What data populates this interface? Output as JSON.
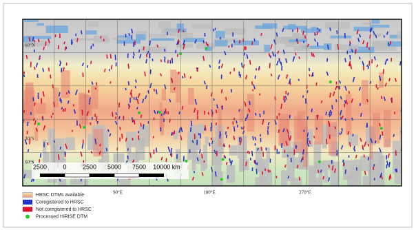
{
  "map": {
    "latitude_labels": [
      "60°N",
      "30°S",
      "60°S"
    ],
    "longitude_labels": [
      "90°E",
      "180°E",
      "270°E"
    ],
    "scale_bar": {
      "labels": [
        "2500",
        "0",
        "2500",
        "5000",
        "7500",
        "10000 km"
      ]
    },
    "legend": [
      {
        "label": "HRSC DTMs available",
        "color": "#f2b57a"
      },
      {
        "label": "Coregistered to HRSC",
        "color": "#2233cc"
      },
      {
        "label": "Not coregistered to HRSC",
        "color": "#e01030"
      },
      {
        "label": "Processed HiRISE DTM",
        "color": "#22cc22"
      }
    ]
  }
}
